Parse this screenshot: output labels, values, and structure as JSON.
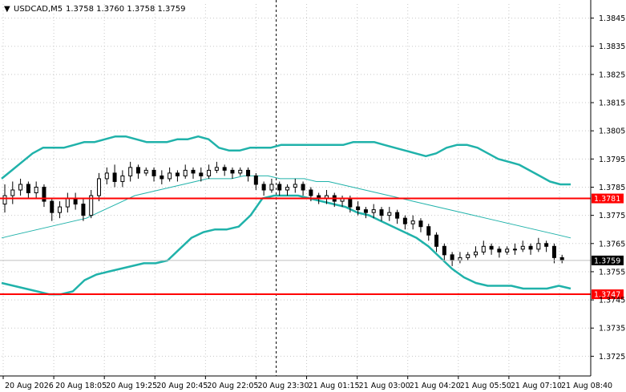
{
  "header": {
    "symbol": "USDCAD,M5",
    "ohlc": "1.3758 1.3760 1.3758 1.3759"
  },
  "colors": {
    "background": "#ffffff",
    "grid": "#c8c8c8",
    "candle": "#000000",
    "bollinger_outer": "#20b2aa",
    "bollinger_middle": "#20b2aa",
    "level_line": "#ff0000",
    "price_tag_bg": "#ff0000",
    "current_tag_bg": "#000000"
  },
  "chart_data": {
    "type": "candlestick",
    "title": "USDCAD,M5",
    "ylim": [
      1.3718,
      1.385
    ],
    "y_ticks": [
      "1.3845",
      "1.3835",
      "1.3825",
      "1.3815",
      "1.3805",
      "1.3795",
      "1.3785",
      "1.3775",
      "1.3765",
      "1.3755",
      "1.3745",
      "1.3735",
      "1.3725"
    ],
    "x_ticks": [
      "20 Aug 2026",
      "20 Aug 18:05",
      "20 Aug 19:25",
      "20 Aug 20:45",
      "20 Aug 22:05",
      "20 Aug 23:30",
      "21 Aug 01:15",
      "21 Aug 03:00",
      "21 Aug 04:20",
      "21 Aug 05:50",
      "21 Aug 07:10",
      "21 Aug 08:40"
    ],
    "grid": true,
    "horizontal_levels": [
      {
        "price": 1.3781,
        "label": "1.3781"
      },
      {
        "price": 1.3747,
        "label": "1.3747"
      }
    ],
    "current_price": {
      "price": 1.3759,
      "label": "1.3759"
    },
    "vertical_marker_index": 0.36,
    "close": [
      1.3782,
      1.3784,
      1.3786,
      1.3783,
      1.3785,
      1.378,
      1.3776,
      1.3778,
      1.3781,
      1.3779,
      1.3775,
      1.3782,
      1.3788,
      1.379,
      1.3787,
      1.3789,
      1.3792,
      1.379,
      1.3791,
      1.3789,
      1.3788,
      1.379,
      1.3789,
      1.3791,
      1.379,
      1.3789,
      1.3791,
      1.3792,
      1.3791,
      1.379,
      1.3791,
      1.3789,
      1.3786,
      1.3784,
      1.3786,
      1.3784,
      1.3785,
      1.3786,
      1.3784,
      1.3782,
      1.3781,
      1.3782,
      1.378,
      1.3781,
      1.3778,
      1.3777,
      1.3776,
      1.3777,
      1.3775,
      1.3776,
      1.3774,
      1.3772,
      1.3773,
      1.3771,
      1.3768,
      1.3764,
      1.3761,
      1.3759,
      1.376,
      1.3761,
      1.3762,
      1.3764,
      1.3763,
      1.3762,
      1.3763,
      1.3763,
      1.3764,
      1.3763,
      1.3765,
      1.3764,
      1.376,
      1.3759
    ],
    "open": [
      1.3779,
      1.3782,
      1.3784,
      1.3786,
      1.3783,
      1.3785,
      1.378,
      1.3776,
      1.3778,
      1.3781,
      1.3779,
      1.3775,
      1.3782,
      1.3788,
      1.379,
      1.3787,
      1.3789,
      1.3792,
      1.379,
      1.3791,
      1.3789,
      1.3788,
      1.379,
      1.3789,
      1.3791,
      1.379,
      1.3789,
      1.3791,
      1.3792,
      1.3791,
      1.379,
      1.3791,
      1.3789,
      1.3786,
      1.3784,
      1.3786,
      1.3784,
      1.3785,
      1.3786,
      1.3784,
      1.3782,
      1.3781,
      1.3782,
      1.378,
      1.3781,
      1.3778,
      1.3777,
      1.3776,
      1.3777,
      1.3775,
      1.3776,
      1.3774,
      1.3772,
      1.3773,
      1.3771,
      1.3768,
      1.3764,
      1.3761,
      1.3759,
      1.376,
      1.3761,
      1.3762,
      1.3764,
      1.3763,
      1.3762,
      1.3763,
      1.3763,
      1.3764,
      1.3763,
      1.3765,
      1.3764,
      1.376
    ],
    "high": [
      1.3786,
      1.3787,
      1.3788,
      1.3787,
      1.3787,
      1.3786,
      1.3781,
      1.378,
      1.3783,
      1.3783,
      1.3781,
      1.3784,
      1.379,
      1.3792,
      1.3793,
      1.3791,
      1.3794,
      1.3793,
      1.3792,
      1.3792,
      1.3791,
      1.3792,
      1.3791,
      1.3793,
      1.3792,
      1.3792,
      1.3793,
      1.3794,
      1.3793,
      1.3792,
      1.3792,
      1.3792,
      1.379,
      1.3787,
      1.3788,
      1.3787,
      1.3786,
      1.3788,
      1.3787,
      1.3785,
      1.3783,
      1.3784,
      1.3783,
      1.3782,
      1.3782,
      1.378,
      1.3778,
      1.3779,
      1.3778,
      1.3778,
      1.3777,
      1.3775,
      1.3775,
      1.3774,
      1.3772,
      1.3769,
      1.3765,
      1.3762,
      1.3762,
      1.3762,
      1.3764,
      1.3766,
      1.3765,
      1.3764,
      1.3764,
      1.3765,
      1.3766,
      1.3765,
      1.3767,
      1.3766,
      1.3765,
      1.3761
    ],
    "low": [
      1.3776,
      1.3779,
      1.3782,
      1.3781,
      1.3781,
      1.3778,
      1.3773,
      1.3774,
      1.3776,
      1.3777,
      1.3773,
      1.3774,
      1.378,
      1.3786,
      1.3785,
      1.3785,
      1.3787,
      1.3788,
      1.3789,
      1.3787,
      1.3786,
      1.3787,
      1.3787,
      1.3788,
      1.3788,
      1.3787,
      1.3788,
      1.379,
      1.3789,
      1.3788,
      1.3789,
      1.3787,
      1.3784,
      1.3782,
      1.3783,
      1.3782,
      1.3782,
      1.3783,
      1.3782,
      1.378,
      1.3779,
      1.3779,
      1.3778,
      1.3778,
      1.3776,
      1.3775,
      1.3774,
      1.3774,
      1.3773,
      1.3773,
      1.3772,
      1.377,
      1.377,
      1.3769,
      1.3766,
      1.3762,
      1.3759,
      1.3757,
      1.3758,
      1.3759,
      1.376,
      1.3761,
      1.3761,
      1.376,
      1.3761,
      1.3761,
      1.3762,
      1.3761,
      1.3762,
      1.3762,
      1.3758,
      1.3758
    ],
    "bb_upper": [
      1.3788,
      1.3791,
      1.3794,
      1.3797,
      1.3799,
      1.3799,
      1.3799,
      1.38,
      1.3801,
      1.3801,
      1.3802,
      1.3803,
      1.3803,
      1.3802,
      1.3801,
      1.3801,
      1.3801,
      1.3802,
      1.3802,
      1.3803,
      1.3802,
      1.3799,
      1.3798,
      1.3798,
      1.3799,
      1.3799,
      1.3799,
      1.38,
      1.38,
      1.38,
      1.38,
      1.38,
      1.38,
      1.38,
      1.3801,
      1.3801,
      1.3801,
      1.38,
      1.3799,
      1.3798,
      1.3797,
      1.3796,
      1.3797,
      1.3799,
      1.38,
      1.38,
      1.3799,
      1.3797,
      1.3795,
      1.3794,
      1.3793,
      1.3791,
      1.3789,
      1.3787,
      1.3786,
      1.3786
    ],
    "bb_middle": [
      1.3767,
      1.3768,
      1.3769,
      1.377,
      1.3771,
      1.3772,
      1.3773,
      1.3774,
      1.3776,
      1.3778,
      1.378,
      1.3782,
      1.3783,
      1.3784,
      1.3785,
      1.3786,
      1.3787,
      1.3788,
      1.3788,
      1.3788,
      1.3789,
      1.3789,
      1.3789,
      1.3788,
      1.3788,
      1.3788,
      1.3787,
      1.3787,
      1.3786,
      1.3785,
      1.3784,
      1.3783,
      1.3782,
      1.3781,
      1.378,
      1.3779,
      1.3778,
      1.3777,
      1.3776,
      1.3775,
      1.3774,
      1.3773,
      1.3772,
      1.3771,
      1.377,
      1.3769,
      1.3768,
      1.3767
    ],
    "bb_lower": [
      1.3751,
      1.375,
      1.3749,
      1.3748,
      1.3747,
      1.3747,
      1.3748,
      1.3752,
      1.3754,
      1.3755,
      1.3756,
      1.3757,
      1.3758,
      1.3758,
      1.3759,
      1.3763,
      1.3767,
      1.3769,
      1.377,
      1.377,
      1.3771,
      1.3775,
      1.3781,
      1.3782,
      1.3782,
      1.3782,
      1.3781,
      1.378,
      1.3779,
      1.3778,
      1.3776,
      1.3775,
      1.3773,
      1.3771,
      1.3769,
      1.3767,
      1.3764,
      1.376,
      1.3756,
      1.3753,
      1.3751,
      1.375,
      1.375,
      1.375,
      1.3749,
      1.3749,
      1.3749,
      1.375,
      1.3749
    ]
  }
}
